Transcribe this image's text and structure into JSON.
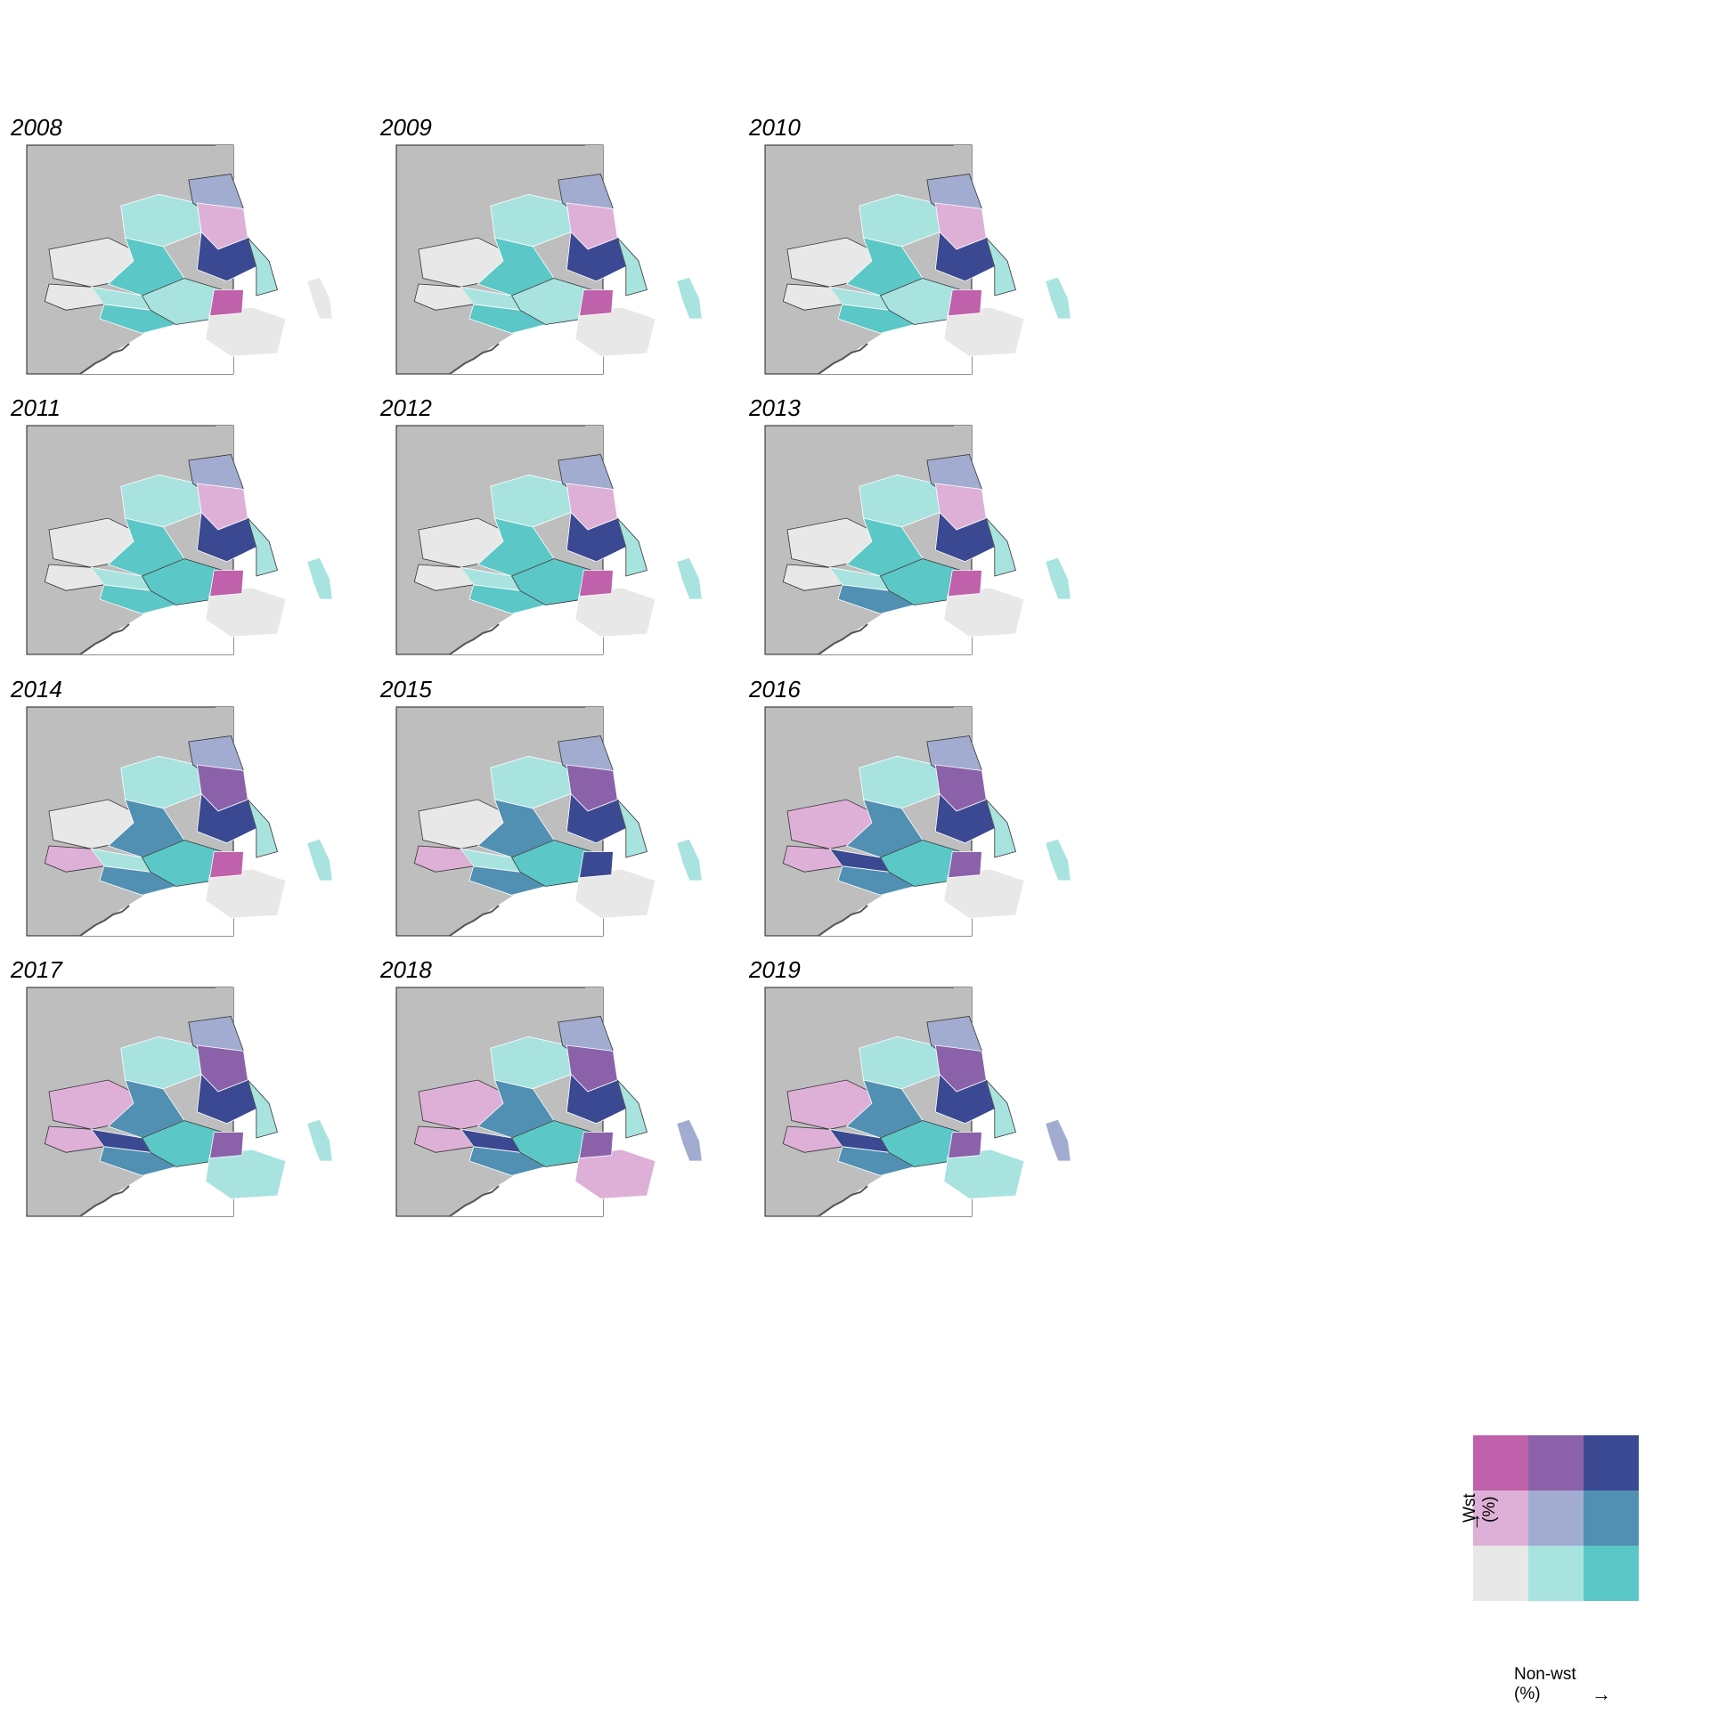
{
  "panels": [
    {
      "year": "2008",
      "fills": [
        "#e8e8e8",
        "#a8e3e0",
        "#5bc7c6",
        "#e8e8e8",
        "#a8e3e0",
        "#5bc7c6",
        "#a8e3e0",
        "#e8e8e8",
        "#bf61ab",
        "#a2acd0",
        "#dfb0d7",
        "#3b4992",
        "#a8e3e0",
        "#e8e8e8"
      ]
    },
    {
      "year": "2009",
      "fills": [
        "#e8e8e8",
        "#a8e3e0",
        "#5bc7c6",
        "#e8e8e8",
        "#a8e3e0",
        "#5bc7c6",
        "#a8e3e0",
        "#e8e8e8",
        "#bf61ab",
        "#a2acd0",
        "#dfb0d7",
        "#3b4992",
        "#a8e3e0",
        "#a8e3e0"
      ]
    },
    {
      "year": "2010",
      "fills": [
        "#e8e8e8",
        "#a8e3e0",
        "#5bc7c6",
        "#e8e8e8",
        "#a8e3e0",
        "#5bc7c6",
        "#a8e3e0",
        "#e8e8e8",
        "#bf61ab",
        "#a2acd0",
        "#dfb0d7",
        "#3b4992",
        "#a8e3e0",
        "#a8e3e0"
      ]
    },
    {
      "year": "2011",
      "fills": [
        "#e8e8e8",
        "#a8e3e0",
        "#5bc7c6",
        "#e8e8e8",
        "#a8e3e0",
        "#5bc7c6",
        "#5bc7c6",
        "#e8e8e8",
        "#bf61ab",
        "#a2acd0",
        "#dfb0d7",
        "#3b4992",
        "#a8e3e0",
        "#a8e3e0"
      ]
    },
    {
      "year": "2012",
      "fills": [
        "#e8e8e8",
        "#a8e3e0",
        "#5bc7c6",
        "#e8e8e8",
        "#a8e3e0",
        "#5bc7c6",
        "#5bc7c6",
        "#e8e8e8",
        "#bf61ab",
        "#a2acd0",
        "#dfb0d7",
        "#3b4992",
        "#a8e3e0",
        "#a8e3e0"
      ]
    },
    {
      "year": "2013",
      "fills": [
        "#e8e8e8",
        "#a8e3e0",
        "#5bc7c6",
        "#e8e8e8",
        "#a8e3e0",
        "#5190b2",
        "#5bc7c6",
        "#e8e8e8",
        "#bf61ab",
        "#a2acd0",
        "#dfb0d7",
        "#3b4992",
        "#a8e3e0",
        "#a8e3e0"
      ]
    },
    {
      "year": "2014",
      "fills": [
        "#e8e8e8",
        "#a8e3e0",
        "#5190b2",
        "#dfb0d7",
        "#a8e3e0",
        "#5190b2",
        "#5bc7c6",
        "#e8e8e8",
        "#bf61ab",
        "#a2acd0",
        "#8b62aa",
        "#3b4992",
        "#a8e3e0",
        "#a8e3e0"
      ]
    },
    {
      "year": "2015",
      "fills": [
        "#e8e8e8",
        "#a8e3e0",
        "#5190b2",
        "#dfb0d7",
        "#a8e3e0",
        "#5190b2",
        "#5bc7c6",
        "#e8e8e8",
        "#3b4992",
        "#a2acd0",
        "#8b62aa",
        "#3b4992",
        "#a8e3e0",
        "#a8e3e0"
      ]
    },
    {
      "year": "2016",
      "fills": [
        "#dfb0d7",
        "#a8e3e0",
        "#5190b2",
        "#dfb0d7",
        "#3b4992",
        "#5190b2",
        "#5bc7c6",
        "#e8e8e8",
        "#8b62aa",
        "#a2acd0",
        "#8b62aa",
        "#3b4992",
        "#a8e3e0",
        "#a8e3e0"
      ]
    },
    {
      "year": "2017",
      "fills": [
        "#dfb0d7",
        "#a8e3e0",
        "#5190b2",
        "#dfb0d7",
        "#3b4992",
        "#5190b2",
        "#5bc7c6",
        "#a8e3e0",
        "#8b62aa",
        "#a2acd0",
        "#8b62aa",
        "#3b4992",
        "#a8e3e0",
        "#a8e3e0"
      ]
    },
    {
      "year": "2018",
      "fills": [
        "#dfb0d7",
        "#a8e3e0",
        "#5190b2",
        "#dfb0d7",
        "#3b4992",
        "#5190b2",
        "#5bc7c6",
        "#dfb0d7",
        "#8b62aa",
        "#a2acd0",
        "#8b62aa",
        "#3b4992",
        "#a8e3e0",
        "#a2acd0"
      ]
    },
    {
      "year": "2019",
      "fills": [
        "#dfb0d7",
        "#a8e3e0",
        "#5190b2",
        "#dfb0d7",
        "#3b4992",
        "#5190b2",
        "#5bc7c6",
        "#a8e3e0",
        "#8b62aa",
        "#a2acd0",
        "#8b62aa",
        "#3b4992",
        "#a8e3e0",
        "#a2acd0"
      ]
    }
  ],
  "colors": {
    "background_land": "#bebebe",
    "border_light": "#ffffff",
    "border_dark": "#333333",
    "coast": "#555555"
  },
  "legend": {
    "y_label": "Wst\n(%)",
    "x_label": "Non-wst\n(%)",
    "arrow": "→",
    "grid": [
      [
        "#bf61ab",
        "#8b62aa",
        "#3b4992"
      ],
      [
        "#dfb0d7",
        "#a2acd0",
        "#5190b2"
      ],
      [
        "#e8e8e8",
        "#a8e3e0",
        "#5bc7c6"
      ]
    ]
  }
}
